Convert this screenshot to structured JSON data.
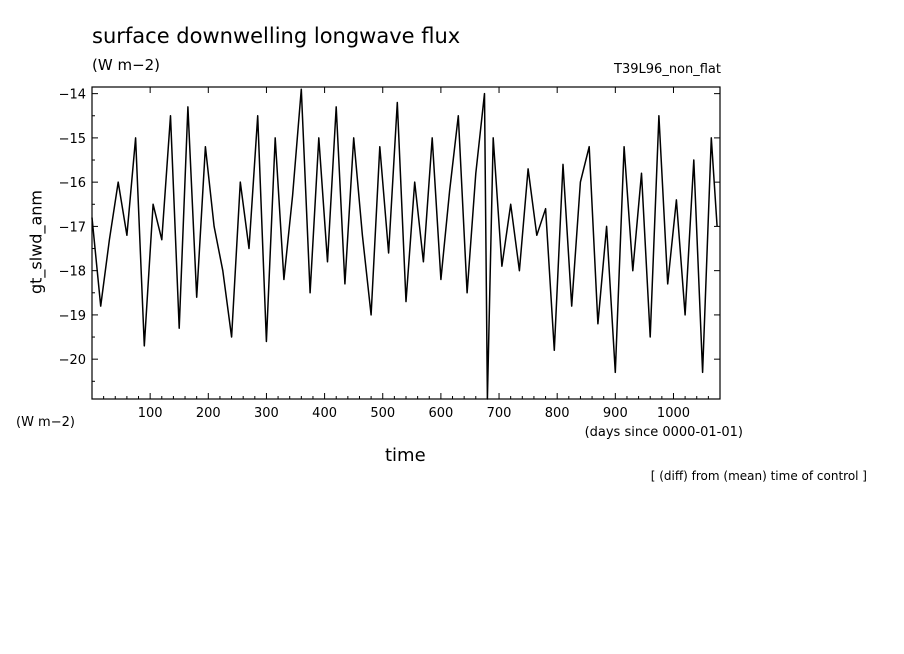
{
  "chart_data": {
    "type": "line",
    "title": "surface downwelling longwave flux",
    "units": "(W m−2)",
    "experiment": "T39L96_non_flat",
    "ylabel": "gt_slwd_anm",
    "y_units": "(W m−2)",
    "xlabel": "time",
    "x_units": "(days since 0000-01-01)",
    "note": "[ (diff) from (mean) time of control ]",
    "xlim": [
      0,
      1080
    ],
    "ylim": [
      -20.9,
      -13.85
    ],
    "x_ticks": [
      100,
      200,
      300,
      400,
      500,
      600,
      700,
      800,
      900,
      1000
    ],
    "y_ticks": [
      -14,
      -15,
      -16,
      -17,
      -18,
      -19,
      -20
    ],
    "x_tick_labels": [
      "100",
      "200",
      "300",
      "400",
      "500",
      "600",
      "700",
      "800",
      "900",
      "1000"
    ],
    "y_tick_labels": [
      "−14",
      "−15",
      "−16",
      "−17",
      "−18",
      "−19",
      "−20"
    ],
    "grid": false,
    "x": [
      0,
      15,
      30,
      45,
      60,
      75,
      90,
      105,
      120,
      135,
      150,
      165,
      180,
      195,
      210,
      225,
      240,
      255,
      270,
      285,
      300,
      315,
      330,
      345,
      360,
      375,
      390,
      405,
      420,
      435,
      450,
      465,
      480,
      495,
      510,
      525,
      540,
      555,
      570,
      585,
      600,
      615,
      630,
      645,
      660,
      675,
      680,
      690,
      705,
      720,
      735,
      750,
      765,
      780,
      795,
      810,
      825,
      840,
      855,
      870,
      885,
      900,
      915,
      930,
      945,
      960,
      975,
      990,
      1005,
      1020,
      1035,
      1050,
      1065,
      1075
    ],
    "series": [
      {
        "name": "",
        "values": [
          -16.8,
          -18.8,
          -17.3,
          -16.0,
          -17.2,
          -15.0,
          -19.7,
          -16.5,
          -17.3,
          -14.5,
          -19.3,
          -14.3,
          -18.6,
          -15.2,
          -17.0,
          -18.0,
          -19.5,
          -16.0,
          -17.5,
          -14.5,
          -19.6,
          -15.0,
          -18.2,
          -16.3,
          -13.9,
          -18.5,
          -15.0,
          -17.8,
          -14.3,
          -18.3,
          -15.0,
          -17.2,
          -19.0,
          -15.2,
          -17.6,
          -14.2,
          -18.7,
          -16.0,
          -17.8,
          -15.0,
          -18.2,
          -16.2,
          -14.5,
          -18.5,
          -15.8,
          -14.0,
          -20.9,
          -15.0,
          -17.9,
          -16.5,
          -18.0,
          -15.7,
          -17.2,
          -16.6,
          -19.8,
          -15.6,
          -18.8,
          -16.0,
          -15.2,
          -19.2,
          -17.0,
          -20.3,
          -15.2,
          -18.0,
          -15.8,
          -19.5,
          -14.5,
          -18.3,
          -16.4,
          -19.0,
          -15.5,
          -20.3,
          -15.0,
          -17.0
        ]
      }
    ]
  }
}
